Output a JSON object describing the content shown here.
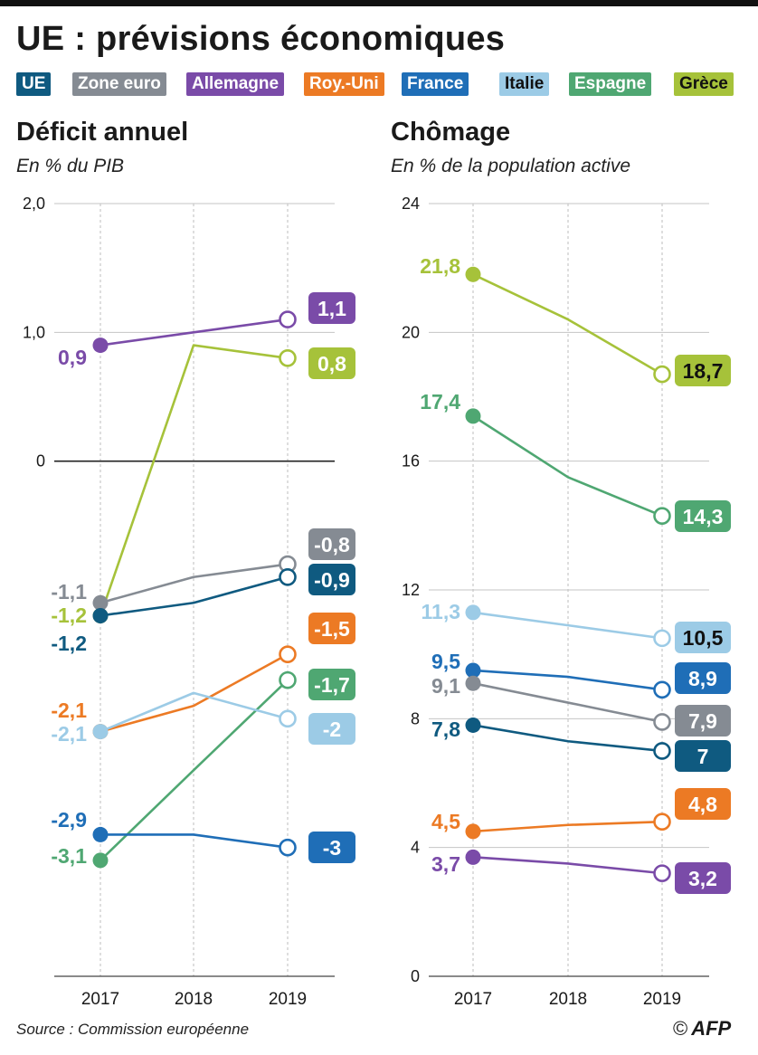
{
  "title": "UE : prévisions économiques",
  "legend": [
    {
      "label": "UE",
      "color": "#0f5a80"
    },
    {
      "label": "Zone euro",
      "color": "#858b93"
    },
    {
      "label": "Allemagne",
      "color": "#7a4ba8"
    },
    {
      "label": "Roy.-Uni",
      "color": "#ec7a24"
    },
    {
      "label": "France",
      "color": "#1f6eb7"
    },
    {
      "label": "Italie",
      "color": "#9ccbe6"
    },
    {
      "label": "Espagne",
      "color": "#4fa772"
    },
    {
      "label": "Grèce",
      "color": "#a6c23a"
    }
  ],
  "chart_data": [
    {
      "type": "line",
      "title": "Déficit annuel",
      "subtitle": "En % du PIB",
      "x": [
        "2017",
        "2018",
        "2019"
      ],
      "ylim": [
        -4,
        2
      ],
      "y_ticks": [
        {
          "v": 2,
          "label": "2,0"
        },
        {
          "v": 1,
          "label": "1,0"
        },
        {
          "v": 0,
          "label": "0"
        }
      ],
      "series": [
        {
          "name": "Allemagne",
          "color": "#7a4ba8",
          "values": [
            0.9,
            1.0,
            1.1
          ],
          "start_label": "0,9",
          "end_label": "1,1",
          "end_text_color": "#ffffff"
        },
        {
          "name": "Grèce",
          "color": "#a6c23a",
          "values": [
            -1.2,
            0.9,
            0.8
          ],
          "start_label": "-1,2",
          "end_label": "0,8",
          "end_text_color": "#ffffff"
        },
        {
          "name": "Zone euro",
          "color": "#858b93",
          "values": [
            -1.1,
            -0.9,
            -0.8
          ],
          "start_label": "-1,1",
          "end_label": "-0,8",
          "end_text_color": "#ffffff"
        },
        {
          "name": "UE",
          "color": "#0f5a80",
          "values": [
            -1.2,
            -1.1,
            -0.9
          ],
          "start_label": "-1,2",
          "end_label": "-0,9",
          "end_text_color": "#ffffff"
        },
        {
          "name": "Roy.-Uni",
          "color": "#ec7a24",
          "values": [
            -2.1,
            -1.9,
            -1.5
          ],
          "start_label": "-2,1",
          "end_label": "-1,5",
          "end_text_color": "#ffffff"
        },
        {
          "name": "Espagne",
          "color": "#4fa772",
          "values": [
            -3.1,
            -2.4,
            -1.7
          ],
          "start_label": "-3,1",
          "end_label": "-1,7",
          "end_text_color": "#ffffff"
        },
        {
          "name": "Italie",
          "color": "#9ccbe6",
          "values": [
            -2.1,
            -1.8,
            -2.0
          ],
          "start_label": "-2,1",
          "end_label": "-2",
          "end_text_color": "#ffffff"
        },
        {
          "name": "France",
          "color": "#1f6eb7",
          "values": [
            -2.9,
            -2.9,
            -3.0
          ],
          "start_label": "-2,9",
          "end_label": "-3",
          "end_text_color": "#ffffff"
        }
      ]
    },
    {
      "type": "line",
      "title": "Chômage",
      "subtitle": "En % de la population active",
      "x": [
        "2017",
        "2018",
        "2019"
      ],
      "ylim": [
        0,
        24
      ],
      "y_ticks": [
        {
          "v": 24,
          "label": "24"
        },
        {
          "v": 20,
          "label": "20"
        },
        {
          "v": 16,
          "label": "16"
        },
        {
          "v": 12,
          "label": "12"
        },
        {
          "v": 8,
          "label": "8"
        },
        {
          "v": 4,
          "label": "4"
        },
        {
          "v": 0,
          "label": "0"
        }
      ],
      "series": [
        {
          "name": "Grèce",
          "color": "#a6c23a",
          "values": [
            21.8,
            20.4,
            18.7
          ],
          "start_label": "21,8",
          "end_label": "18,7",
          "end_text_color": "#111111"
        },
        {
          "name": "Espagne",
          "color": "#4fa772",
          "values": [
            17.4,
            15.5,
            14.3
          ],
          "start_label": "17,4",
          "end_label": "14,3",
          "end_text_color": "#ffffff"
        },
        {
          "name": "Italie",
          "color": "#9ccbe6",
          "values": [
            11.3,
            10.9,
            10.5
          ],
          "start_label": "11,3",
          "end_label": "10,5",
          "end_text_color": "#111111"
        },
        {
          "name": "France",
          "color": "#1f6eb7",
          "values": [
            9.5,
            9.3,
            8.9
          ],
          "start_label": "9,5",
          "end_label": "8,9",
          "end_text_color": "#ffffff"
        },
        {
          "name": "Zone euro",
          "color": "#858b93",
          "values": [
            9.1,
            8.5,
            7.9
          ],
          "start_label": "9,1",
          "end_label": "7,9",
          "end_text_color": "#ffffff"
        },
        {
          "name": "UE",
          "color": "#0f5a80",
          "values": [
            7.8,
            7.3,
            7.0
          ],
          "start_label": "7,8",
          "end_label": "7",
          "end_text_color": "#ffffff"
        },
        {
          "name": "Roy.-Uni",
          "color": "#ec7a24",
          "values": [
            4.5,
            4.7,
            4.8
          ],
          "start_label": "4,5",
          "end_label": "4,8",
          "end_text_color": "#ffffff"
        },
        {
          "name": "Allemagne",
          "color": "#7a4ba8",
          "values": [
            3.7,
            3.5,
            3.2
          ],
          "start_label": "3,7",
          "end_label": "3,2",
          "end_text_color": "#ffffff"
        }
      ]
    }
  ],
  "source": "Source : Commission européenne",
  "credit": {
    "copyright": "©",
    "agency": "AFP"
  }
}
